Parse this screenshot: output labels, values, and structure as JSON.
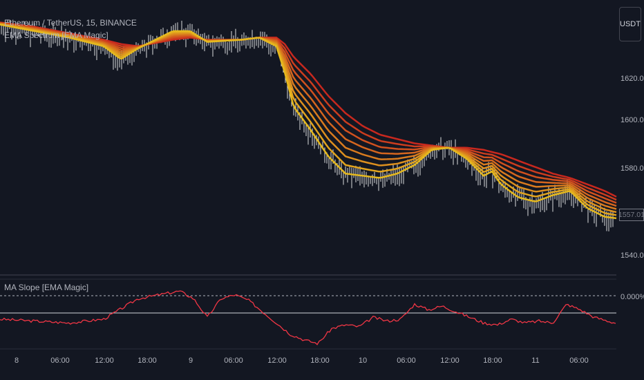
{
  "header": {
    "symbol_title": "Ethereum / TetherUS, 15, BINANCE",
    "indicator_main": "EMA Spectrum [EMA Magic]",
    "indicator_sub": "MA Slope [EMA Magic]"
  },
  "price_axis": {
    "unit": "USDT",
    "ticks": [
      "1620.00",
      "1600.00",
      "1580.00",
      "1540.00"
    ],
    "tick_values": [
      1620,
      1600,
      1580,
      1540
    ],
    "last_price": "1557.01"
  },
  "slope_axis": {
    "ticks": [
      "0.000%"
    ]
  },
  "time_axis": {
    "ticks": [
      "8",
      "06:00",
      "12:00",
      "18:00",
      "9",
      "06:00",
      "12:00",
      "18:00",
      "10",
      "06:00",
      "12:00",
      "18:00",
      "11",
      "06:00"
    ]
  },
  "colors": {
    "background": "#131722",
    "candle": "#ffffff",
    "slope_line": "#f23645",
    "ema_fast": "#e6b91e",
    "ema_slow": "#c8281e"
  },
  "chart_data": [
    {
      "type": "line",
      "title": "Ethereum / TetherUS, 15, BINANCE",
      "ylabel": "USDT",
      "ylim": [
        1532,
        1652
      ],
      "x_ticks": [
        "8",
        "06:00",
        "12:00",
        "18:00",
        "9",
        "06:00",
        "12:00",
        "18:00",
        "10",
        "06:00",
        "12:00",
        "18:00",
        "11",
        "06:00"
      ],
      "x": [
        0,
        50,
        100,
        150,
        175,
        200,
        250,
        275,
        300,
        350,
        375,
        400,
        412,
        425,
        450,
        475,
        500,
        525,
        550,
        575,
        600,
        625,
        650,
        675,
        700,
        712,
        725,
        750,
        775,
        800,
        825,
        850,
        875,
        900
      ],
      "fast_ema": [
        1647,
        1644,
        1641,
        1637,
        1631,
        1636,
        1644,
        1644,
        1639,
        1640,
        1641,
        1637,
        1625,
        1609,
        1598,
        1586,
        1578,
        1577,
        1576,
        1578,
        1582,
        1589,
        1590,
        1585,
        1577,
        1579,
        1573,
        1567,
        1565,
        1568,
        1570,
        1562,
        1558,
        1557
      ],
      "slow_ema": [
        1648,
        1646,
        1643,
        1640,
        1638,
        1637,
        1640,
        1641,
        1640,
        1640,
        1641,
        1641,
        1638,
        1632,
        1624,
        1614,
        1606,
        1600,
        1596,
        1594,
        1592,
        1591,
        1590,
        1590,
        1589,
        1588,
        1587,
        1584,
        1581,
        1578,
        1576,
        1573,
        1570,
        1566
      ]
    },
    {
      "type": "line",
      "title": "MA Slope [EMA Magic]",
      "ylim": [
        -0.15,
        0.2
      ],
      "y_ticks": [
        "0.000%"
      ],
      "x": [
        0,
        50,
        100,
        150,
        200,
        230,
        260,
        280,
        300,
        320,
        340,
        360,
        390,
        420,
        440,
        460,
        480,
        500,
        520,
        540,
        560,
        580,
        600,
        620,
        640,
        660,
        680,
        700,
        720,
        740,
        760,
        780,
        800,
        820,
        840,
        860,
        890
      ],
      "values": [
        -0.01,
        -0.02,
        -0.03,
        -0.01,
        0.1,
        0.12,
        0.14,
        0.1,
        0.0,
        0.1,
        0.12,
        0.09,
        0.0,
        -0.09,
        -0.12,
        -0.14,
        -0.06,
        -0.04,
        -0.05,
        0.0,
        -0.02,
        -0.01,
        0.07,
        0.04,
        0.06,
        0.03,
        0.0,
        -0.03,
        -0.04,
        -0.01,
        -0.03,
        -0.02,
        -0.03,
        0.07,
        0.04,
        0.0,
        -0.03
      ]
    }
  ]
}
